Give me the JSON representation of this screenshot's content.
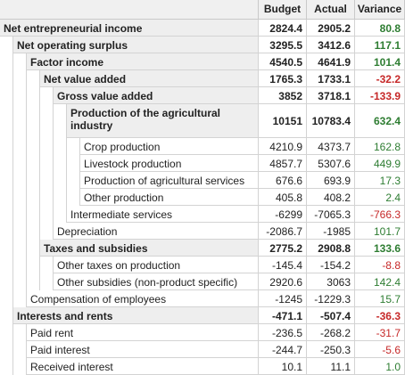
{
  "columns": {
    "budget": "Budget",
    "actual": "Actual",
    "variance": "Variance"
  },
  "rows": [
    {
      "label": "Net entrepreneurial income",
      "level": 0,
      "bold": true,
      "budget": "2824.4",
      "actual": "2905.2",
      "variance": "80.8",
      "sign": "pos"
    },
    {
      "label": "Net operating surplus",
      "level": 1,
      "bold": true,
      "budget": "3295.5",
      "actual": "3412.6",
      "variance": "117.1",
      "sign": "pos"
    },
    {
      "label": "Factor income",
      "level": 2,
      "bold": true,
      "budget": "4540.5",
      "actual": "4641.9",
      "variance": "101.4",
      "sign": "pos"
    },
    {
      "label": "Net value added",
      "level": 3,
      "bold": true,
      "budget": "1765.3",
      "actual": "1733.1",
      "variance": "-32.2",
      "sign": "neg"
    },
    {
      "label": "Gross value added",
      "level": 4,
      "bold": true,
      "budget": "3852",
      "actual": "3718.1",
      "variance": "-133.9",
      "sign": "neg"
    },
    {
      "label": "Production of the agricultural industry",
      "level": 5,
      "bold": true,
      "budget": "10151",
      "actual": "10783.4",
      "variance": "632.4",
      "sign": "pos"
    },
    {
      "label": "Crop production",
      "level": 6,
      "bold": false,
      "budget": "4210.9",
      "actual": "4373.7",
      "variance": "162.8",
      "sign": "pos"
    },
    {
      "label": "Livestock production",
      "level": 6,
      "bold": false,
      "budget": "4857.7",
      "actual": "5307.6",
      "variance": "449.9",
      "sign": "pos"
    },
    {
      "label": "Production of agricultural services",
      "level": 6,
      "bold": false,
      "budget": "676.6",
      "actual": "693.9",
      "variance": "17.3",
      "sign": "pos"
    },
    {
      "label": "Other production",
      "level": 6,
      "bold": false,
      "budget": "405.8",
      "actual": "408.2",
      "variance": "2.4",
      "sign": "pos"
    },
    {
      "label": "Intermediate services",
      "level": 5,
      "bold": false,
      "budget": "-6299",
      "actual": "-7065.3",
      "variance": "-766.3",
      "sign": "neg"
    },
    {
      "label": "Depreciation",
      "level": 4,
      "bold": false,
      "budget": "-2086.7",
      "actual": "-1985",
      "variance": "101.7",
      "sign": "pos"
    },
    {
      "label": "Taxes and subsidies",
      "level": 3,
      "bold": true,
      "budget": "2775.2",
      "actual": "2908.8",
      "variance": "133.6",
      "sign": "pos"
    },
    {
      "label": "Other taxes on production",
      "level": 4,
      "bold": false,
      "budget": "-145.4",
      "actual": "-154.2",
      "variance": "-8.8",
      "sign": "neg"
    },
    {
      "label": "Other subsidies (non-product specific)",
      "level": 4,
      "bold": false,
      "budget": "2920.6",
      "actual": "3063",
      "variance": "142.4",
      "sign": "pos"
    },
    {
      "label": "Compensation of employees",
      "level": 2,
      "bold": false,
      "budget": "-1245",
      "actual": "-1229.3",
      "variance": "15.7",
      "sign": "pos"
    },
    {
      "label": "Interests and rents",
      "level": 1,
      "bold": true,
      "budget": "-471.1",
      "actual": "-507.4",
      "variance": "-36.3",
      "sign": "neg"
    },
    {
      "label": "Paid rent",
      "level": 2,
      "bold": false,
      "budget": "-236.5",
      "actual": "-268.2",
      "variance": "-31.7",
      "sign": "neg"
    },
    {
      "label": "Paid interest",
      "level": 2,
      "bold": false,
      "budget": "-244.7",
      "actual": "-250.3",
      "variance": "-5.6",
      "sign": "neg"
    },
    {
      "label": "Received interest",
      "level": 2,
      "bold": false,
      "budget": "10.1",
      "actual": "11.1",
      "variance": "1.0",
      "sign": "pos"
    }
  ]
}
